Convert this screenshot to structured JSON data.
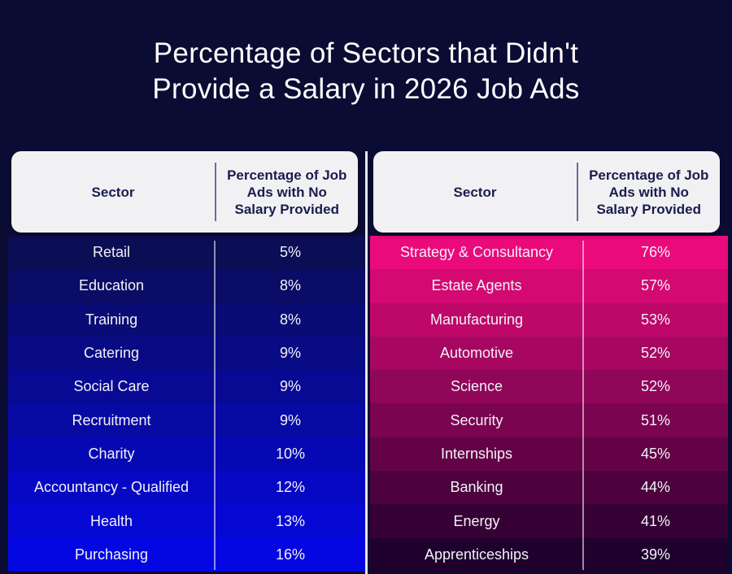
{
  "chart_data": {
    "type": "table",
    "title": "Percentage of Sectors that Didn't Provide a Salary in 2026 Job Ads",
    "tables": [
      {
        "name": "lowest",
        "headers": [
          "Sector",
          "Percentage of Job Ads with No Salary Provided"
        ],
        "gradient": [
          "#0b0d55",
          "#0407e2"
        ],
        "rows": [
          {
            "sector": "Retail",
            "pct": "5%"
          },
          {
            "sector": "Education",
            "pct": "8%"
          },
          {
            "sector": "Training",
            "pct": "8%"
          },
          {
            "sector": "Catering",
            "pct": "9%"
          },
          {
            "sector": "Social Care",
            "pct": "9%"
          },
          {
            "sector": "Recruitment",
            "pct": "9%"
          },
          {
            "sector": "Charity",
            "pct": "10%"
          },
          {
            "sector": "Accountancy - Qualified",
            "pct": "12%"
          },
          {
            "sector": "Health",
            "pct": "13%"
          },
          {
            "sector": "Purchasing",
            "pct": "16%"
          }
        ]
      },
      {
        "name": "highest",
        "headers": [
          "Sector",
          "Percentage of Job Ads with No Salary Provided"
        ],
        "gradient": [
          "#ea0a7b",
          "#20002c"
        ],
        "rows": [
          {
            "sector": "Strategy & Consultancy",
            "pct": "76%"
          },
          {
            "sector": "Estate Agents",
            "pct": "57%"
          },
          {
            "sector": "Manufacturing",
            "pct": "53%"
          },
          {
            "sector": "Automotive",
            "pct": "52%"
          },
          {
            "sector": "Science",
            "pct": "52%"
          },
          {
            "sector": "Security",
            "pct": "51%"
          },
          {
            "sector": "Internships",
            "pct": "45%"
          },
          {
            "sector": "Banking",
            "pct": "44%"
          },
          {
            "sector": "Energy",
            "pct": "41%"
          },
          {
            "sector": "Apprenticeships",
            "pct": "39%"
          }
        ]
      }
    ]
  }
}
